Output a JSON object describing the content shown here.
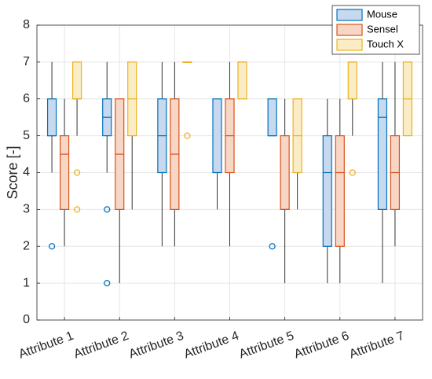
{
  "chart_data": {
    "type": "box",
    "categories": [
      "Attribute 1",
      "Attribute 2",
      "Attribute 3",
      "Attribute 4",
      "Attribute 5",
      "Attribute 6",
      "Attribute 7"
    ],
    "ylabel": "Score [-]",
    "xlabel": "",
    "ylim": [
      0,
      8
    ],
    "yticks": [
      "0",
      "1",
      "2",
      "3",
      "4",
      "5",
      "6",
      "7",
      "8"
    ],
    "grid": true,
    "legend_position": "top-right",
    "series": [
      {
        "name": "Mouse",
        "edge_color": "#0072BD",
        "fill_color": "#C6D9EE",
        "boxes": [
          {
            "whisker_low": 4,
            "q1": 5,
            "median": 5,
            "q3": 6,
            "whisker_high": 7,
            "outliers": [
              2
            ]
          },
          {
            "whisker_low": 4,
            "q1": 5,
            "median": 5.5,
            "q3": 6,
            "whisker_high": 7,
            "outliers": [
              3,
              1
            ]
          },
          {
            "whisker_low": 2,
            "q1": 4,
            "median": 5,
            "q3": 6,
            "whisker_high": 7,
            "outliers": []
          },
          {
            "whisker_low": 3,
            "q1": 4,
            "median": 4,
            "q3": 6,
            "whisker_high": 6,
            "outliers": []
          },
          {
            "whisker_low": 5,
            "q1": 5,
            "median": 5,
            "q3": 6,
            "whisker_high": 6,
            "outliers": [
              2
            ]
          },
          {
            "whisker_low": 1,
            "q1": 2,
            "median": 4,
            "q3": 5,
            "whisker_high": 6,
            "outliers": []
          },
          {
            "whisker_low": 1,
            "q1": 3,
            "median": 5.5,
            "q3": 6,
            "whisker_high": 7,
            "outliers": []
          }
        ]
      },
      {
        "name": "Sensel",
        "edge_color": "#D95319",
        "fill_color": "#F7D6C6",
        "boxes": [
          {
            "whisker_low": 2,
            "q1": 3,
            "median": 4.5,
            "q3": 5,
            "whisker_high": 6,
            "outliers": []
          },
          {
            "whisker_low": 1,
            "q1": 3,
            "median": 4.5,
            "q3": 6,
            "whisker_high": 6,
            "outliers": []
          },
          {
            "whisker_low": 2,
            "q1": 3,
            "median": 4.5,
            "q3": 6,
            "whisker_high": 7,
            "outliers": []
          },
          {
            "whisker_low": 2,
            "q1": 4,
            "median": 5,
            "q3": 6,
            "whisker_high": 7,
            "outliers": []
          },
          {
            "whisker_low": 1,
            "q1": 3,
            "median": 3,
            "q3": 5,
            "whisker_high": 6,
            "outliers": []
          },
          {
            "whisker_low": 1,
            "q1": 2,
            "median": 4,
            "q3": 5,
            "whisker_high": 6,
            "outliers": []
          },
          {
            "whisker_low": 2,
            "q1": 3,
            "median": 4,
            "q3": 5,
            "whisker_high": 7,
            "outliers": []
          }
        ]
      },
      {
        "name": "Touch X",
        "edge_color": "#EDB120",
        "fill_color": "#FAEDC6",
        "boxes": [
          {
            "whisker_low": 5,
            "q1": 6,
            "median": 6,
            "q3": 7,
            "whisker_high": 7,
            "outliers": [
              4,
              3
            ]
          },
          {
            "whisker_low": 3,
            "q1": 5,
            "median": 6,
            "q3": 7,
            "whisker_high": 7,
            "outliers": []
          },
          {
            "whisker_low": 7,
            "q1": 7,
            "median": 7,
            "q3": 7,
            "whisker_high": 7,
            "outliers": [
              5
            ]
          },
          {
            "whisker_low": 6,
            "q1": 6,
            "median": 7,
            "q3": 7,
            "whisker_high": 7,
            "outliers": []
          },
          {
            "whisker_low": 3,
            "q1": 4,
            "median": 5,
            "q3": 6,
            "whisker_high": 6,
            "outliers": []
          },
          {
            "whisker_low": 5,
            "q1": 6,
            "median": 7,
            "q3": 7,
            "whisker_high": 7,
            "outliers": [
              4
            ]
          },
          {
            "whisker_low": 5,
            "q1": 5,
            "median": 6,
            "q3": 7,
            "whisker_high": 7,
            "outliers": []
          }
        ]
      }
    ]
  }
}
